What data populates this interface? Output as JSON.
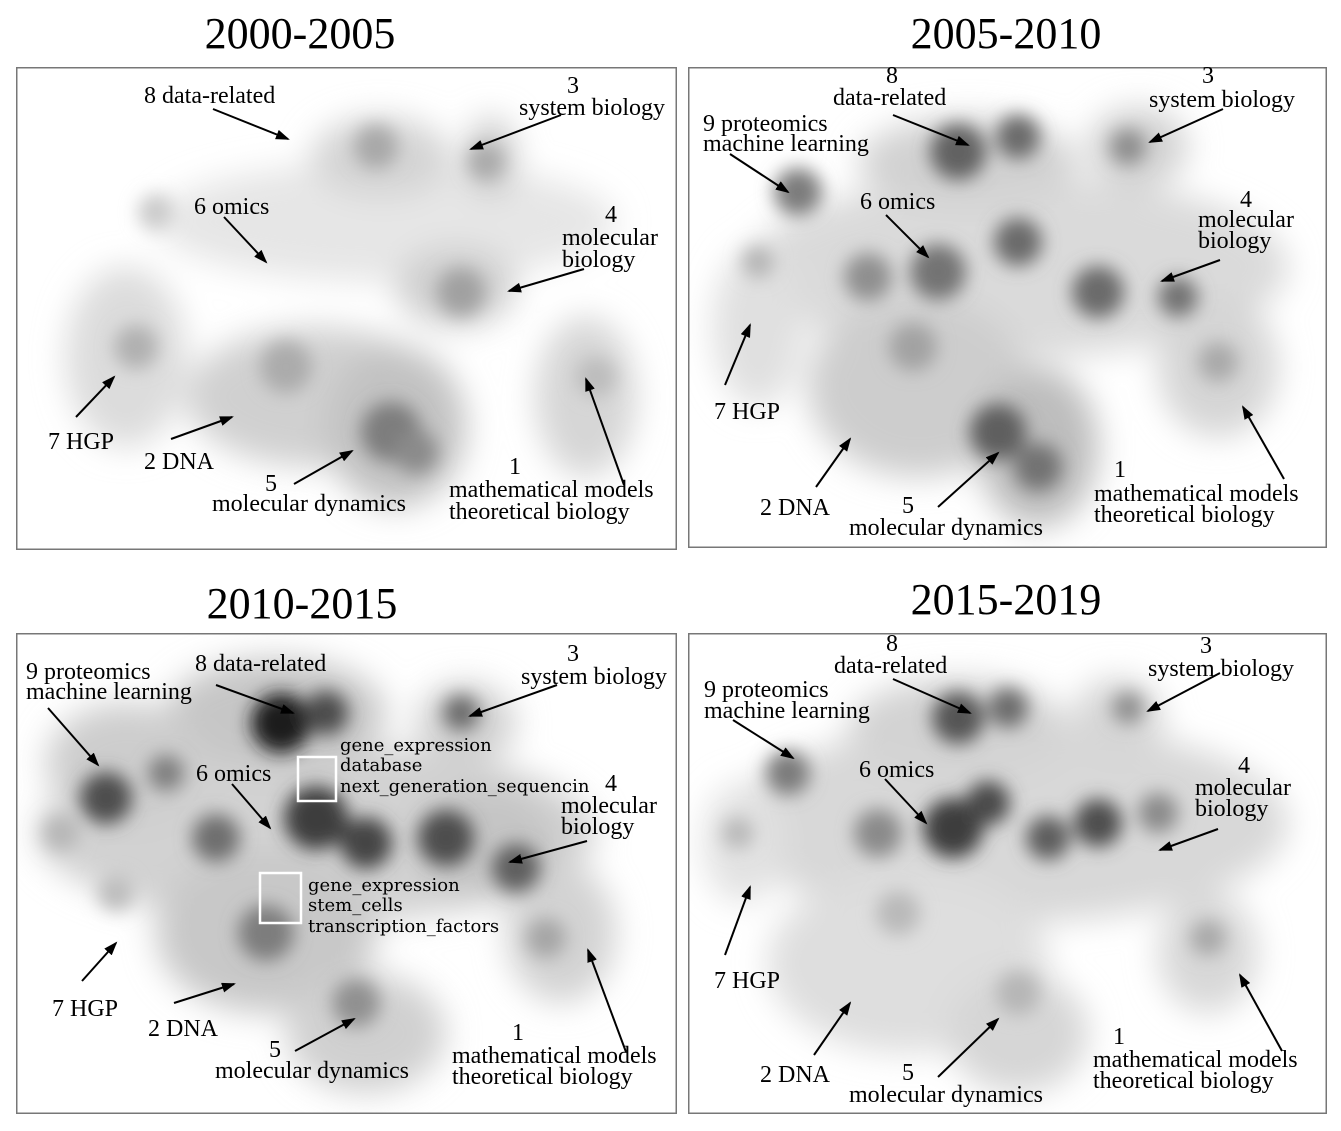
{
  "panels": [
    {
      "title": "2000-2005"
    },
    {
      "title": "2005-2010"
    },
    {
      "title": "2010-2015"
    },
    {
      "title": "2015-2019"
    }
  ],
  "labels": {
    "hgp": "7 HGP",
    "dna": "2 DNA",
    "omics": "6 omics",
    "data_related_full": "8 data-related",
    "data_related_num": "8",
    "data_related_word": "data-related",
    "system_num": "3",
    "system_word": "system biology",
    "molbio_num": "4",
    "molbio_line1": "molecular",
    "molbio_line2": "biology",
    "dyn_num": "5",
    "dyn_word": "molecular dynamics",
    "math_num": "1",
    "math_line1": "mathematical models",
    "math_line2": "theoretical biology",
    "prot_line1": "9 proteomics",
    "prot_line2": "machine learning"
  },
  "callouts": {
    "box1": [
      "gene_expression",
      "database",
      "next_generation_sequencin"
    ],
    "box2": [
      "gene_expression",
      "stem_cells",
      "transcription_factors"
    ]
  }
}
